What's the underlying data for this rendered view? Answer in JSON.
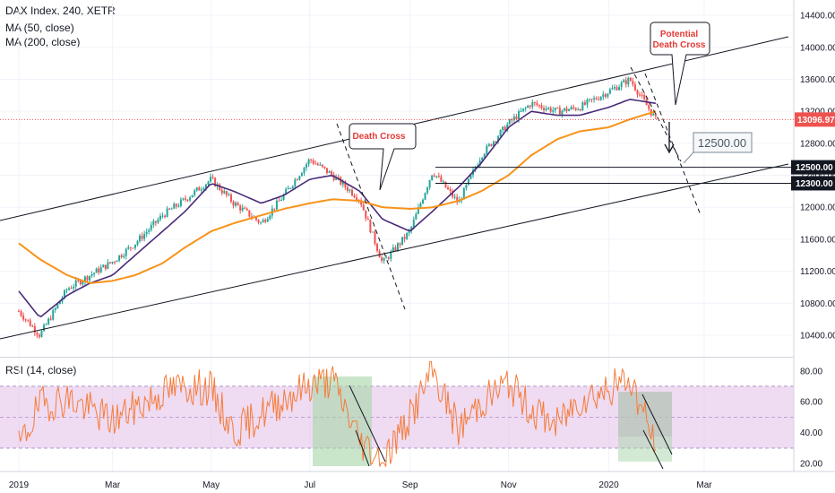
{
  "legend": {
    "title": "DAX Index, 240, XETR",
    "ma50": "MA (50, close)",
    "ma200": "MA (200, close)",
    "rsi": "RSI (14, close)"
  },
  "colors": {
    "price_up": "#26a69a",
    "price_down": "#ef5350",
    "ma50": "#4a2a7a",
    "ma200": "#f7931a",
    "rsi": "#f57c3a",
    "rsi_band": "#e1bee7",
    "green_zone": "#a5d6a7",
    "grey_zone": "#bdbdbd",
    "price_tag": "#ef5350",
    "level_tag": "#131722"
  },
  "annotations": {
    "death_cross": "Death Cross",
    "potential_line1": "Potential",
    "potential_line2": "Death Cross",
    "target_box": "12500.00"
  },
  "chart_data": [
    {
      "type": "line",
      "title": "DAX Index, 240, XETR",
      "x_ticks": [
        "2019",
        "Mar",
        "May",
        "Jul",
        "Sep",
        "Nov",
        "2020",
        "Mar"
      ],
      "y_ticks": [
        10400,
        10800,
        11200,
        11600,
        12000,
        12400,
        12800,
        13200,
        13600,
        14000,
        14400
      ],
      "ylim": [
        10220,
        14480
      ],
      "last_price": "13096.97",
      "levels": [
        {
          "label": "12500.00",
          "value": 12500
        },
        {
          "label": "12300.00",
          "value": 12300
        }
      ],
      "x": [
        "2019-01-02",
        "2019-01-15",
        "2019-02-01",
        "2019-02-15",
        "2019-03-01",
        "2019-03-15",
        "2019-04-01",
        "2019-04-15",
        "2019-05-01",
        "2019-05-15",
        "2019-06-01",
        "2019-06-15",
        "2019-07-01",
        "2019-07-15",
        "2019-08-01",
        "2019-08-15",
        "2019-09-01",
        "2019-09-15",
        "2019-10-01",
        "2019-10-15",
        "2019-11-01",
        "2019-11-15",
        "2019-12-01",
        "2019-12-15",
        "2020-01-02",
        "2020-01-15",
        "2020-01-31"
      ],
      "series": [
        {
          "name": "MA (50, close)",
          "values": [
            10950,
            10620,
            10900,
            11050,
            11150,
            11400,
            11700,
            11950,
            12300,
            12200,
            12050,
            12150,
            12350,
            12400,
            12200,
            11850,
            11700,
            11950,
            12250,
            12550,
            13000,
            13200,
            13150,
            13150,
            13250,
            13350,
            13300
          ]
        },
        {
          "name": "MA (200, close)",
          "values": [
            11550,
            11350,
            11150,
            11050,
            11080,
            11150,
            11300,
            11500,
            11700,
            11800,
            11900,
            11980,
            12050,
            12100,
            12080,
            12000,
            11980,
            12000,
            12080,
            12200,
            12400,
            12650,
            12850,
            12950,
            13000,
            13100,
            13200
          ]
        }
      ],
      "price_path": [
        10700,
        10400,
        10980,
        11150,
        11320,
        11550,
        11900,
        12100,
        12350,
        12050,
        11800,
        12150,
        12600,
        12400,
        12100,
        11300,
        11700,
        12450,
        12050,
        12650,
        13050,
        13300,
        13200,
        13250,
        13450,
        13600,
        13100
      ]
    },
    {
      "type": "line",
      "title": "RSI (14, close)",
      "y_ticks": [
        20,
        40,
        60,
        80
      ],
      "ylim": [
        16,
        88
      ],
      "band": [
        30,
        70
      ],
      "series": [
        {
          "name": "RSI (14, close)",
          "values": [
            30,
            58,
            62,
            55,
            48,
            56,
            66,
            70,
            68,
            40,
            52,
            62,
            71,
            74,
            35,
            22,
            50,
            80,
            42,
            60,
            72,
            55,
            45,
            62,
            68,
            75,
            32
          ]
        }
      ]
    }
  ]
}
